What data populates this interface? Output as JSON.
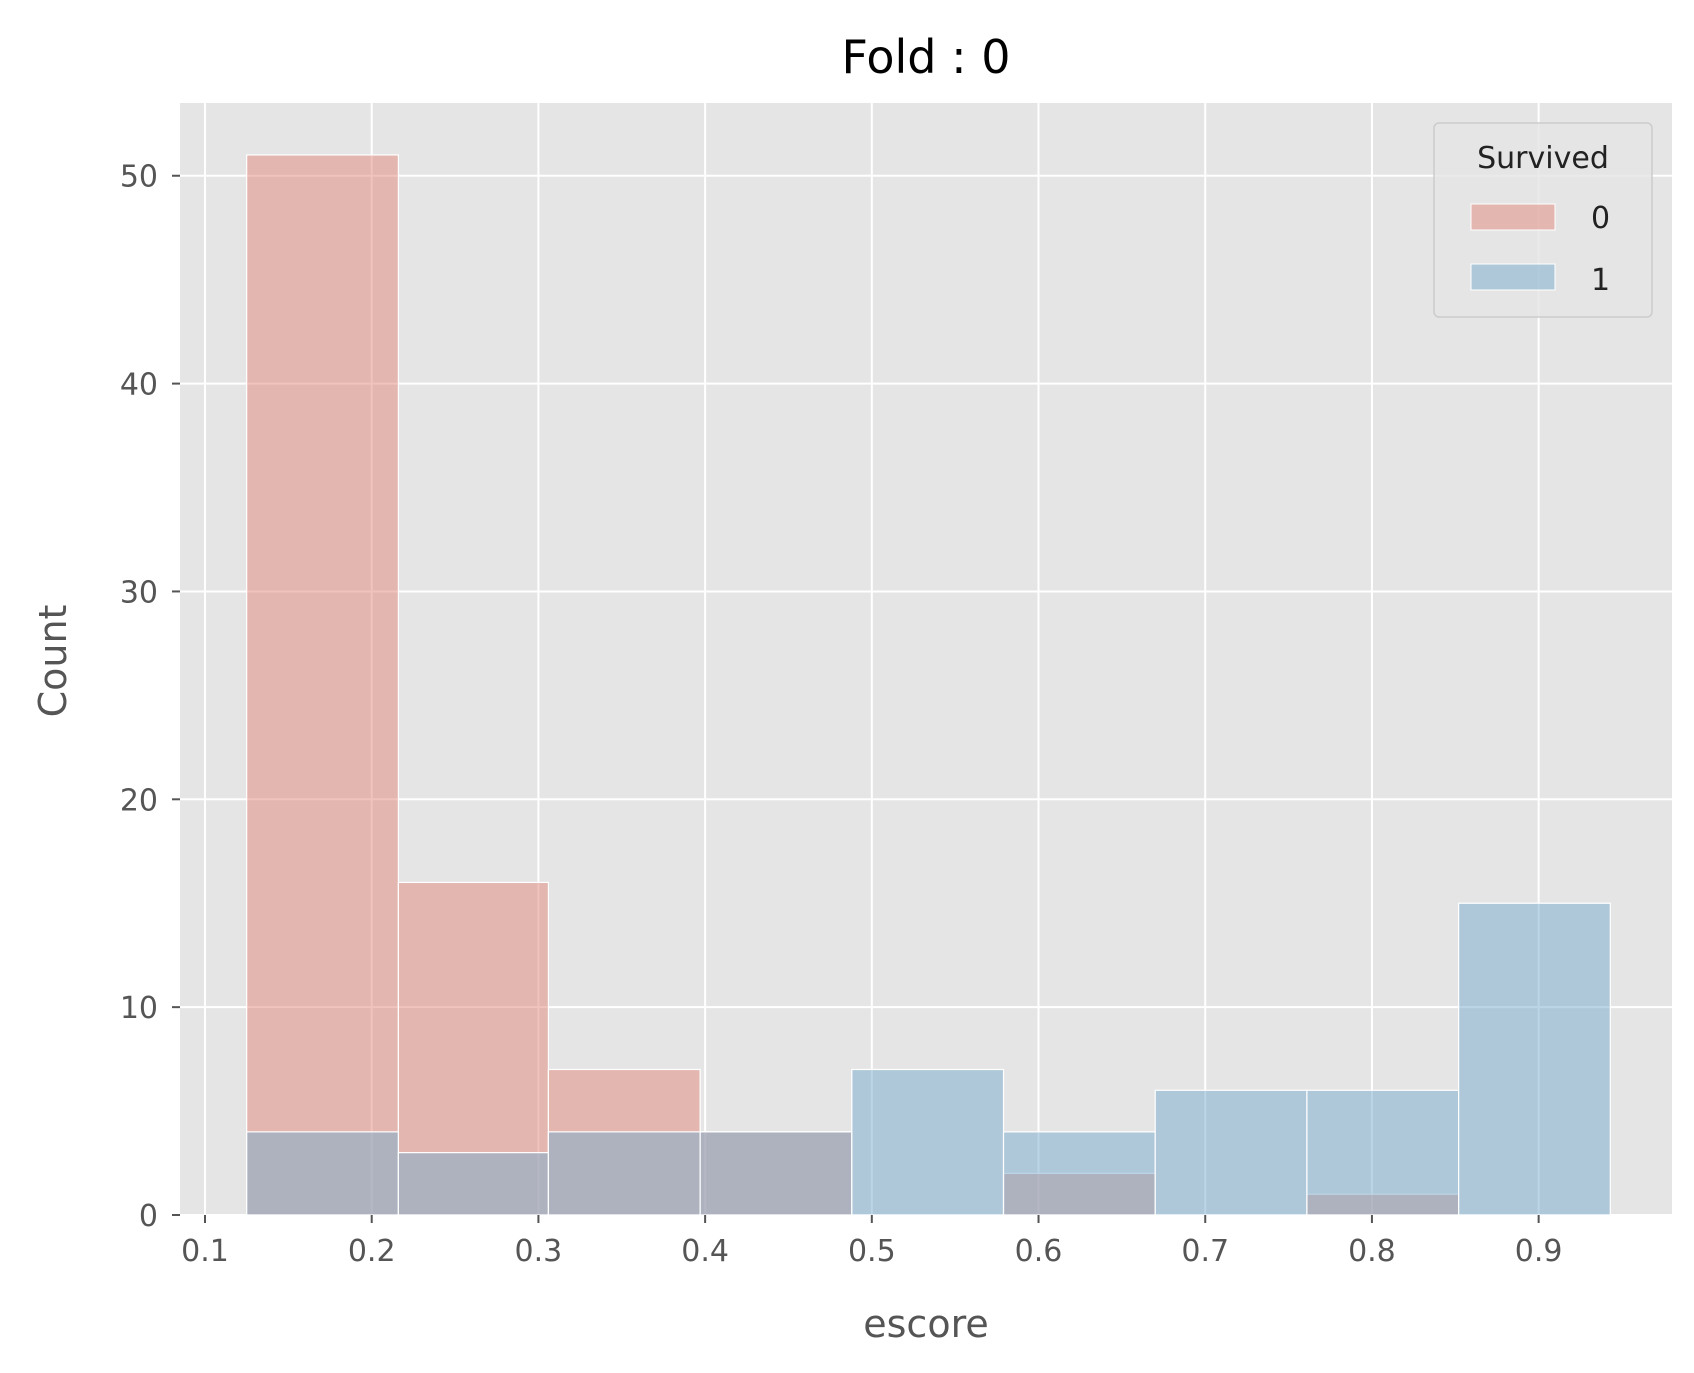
{
  "chart_data": {
    "type": "bar",
    "title": "Fold : 0",
    "xlabel": "escore",
    "ylabel": "Count",
    "xlim": [
      0.085,
      0.98
    ],
    "ylim": [
      0,
      53.5
    ],
    "xticks": [
      "0.1",
      "0.2",
      "0.3",
      "0.4",
      "0.5",
      "0.6",
      "0.7",
      "0.8",
      "0.9"
    ],
    "yticks": [
      "0",
      "10",
      "20",
      "30",
      "40",
      "50"
    ],
    "bin_edges": [
      0.125,
      0.216,
      0.306,
      0.397,
      0.488,
      0.579,
      0.67,
      0.761,
      0.852,
      0.943
    ],
    "grid": true,
    "legend": {
      "title": "Survived",
      "position": "top-right"
    },
    "series": [
      {
        "name": "0",
        "color": "#e2877a",
        "values": [
          51,
          16,
          7,
          4,
          0,
          2,
          0,
          1,
          0
        ]
      },
      {
        "name": "1",
        "color": "#7aabce",
        "values": [
          4,
          3,
          4,
          4,
          7,
          4,
          6,
          6,
          15
        ]
      }
    ],
    "overlap_color": "#b58180",
    "background": "#e5e5e5"
  }
}
